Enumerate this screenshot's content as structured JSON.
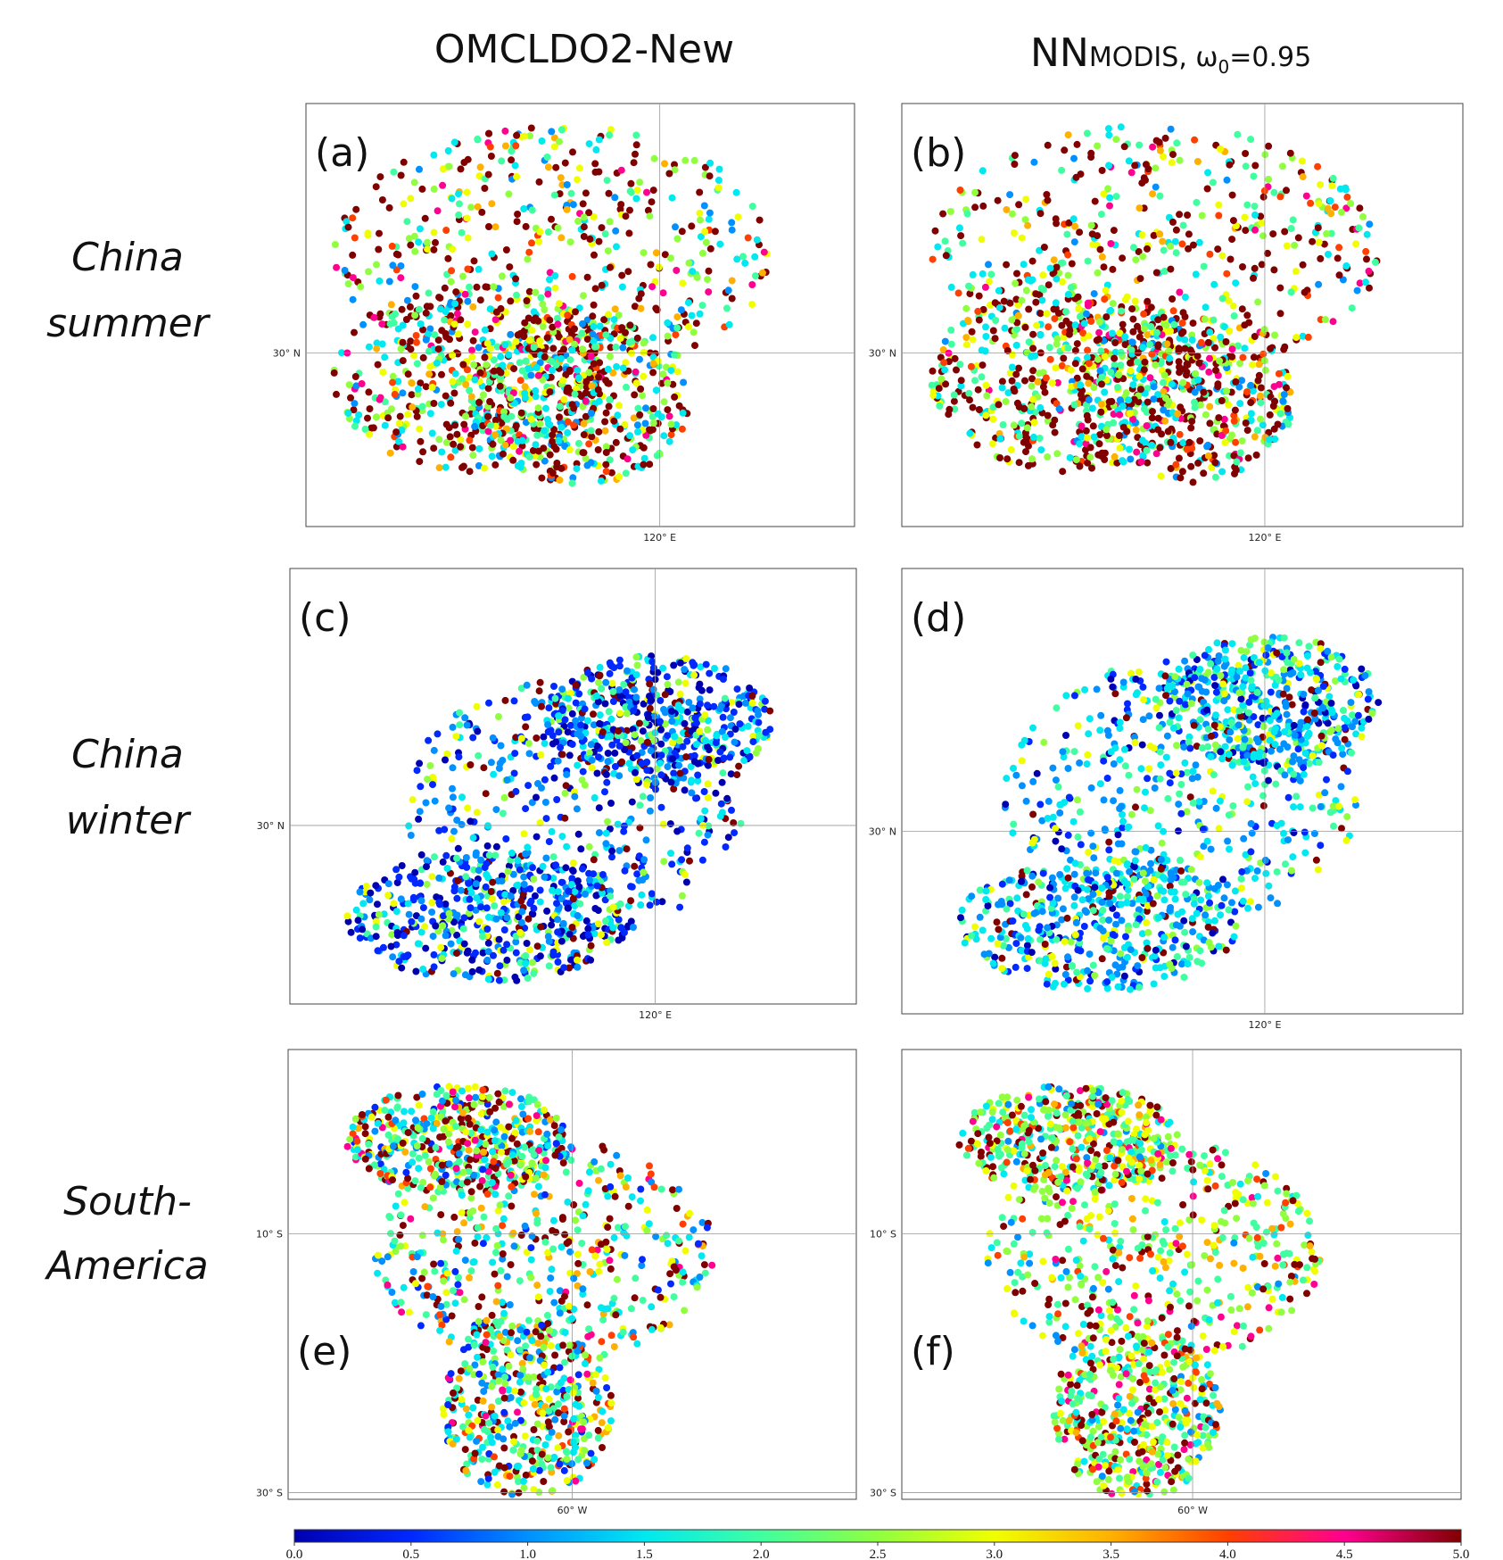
{
  "columns": [
    {
      "main": "OMCLDO2-New"
    },
    {
      "main": "NN",
      "sub": "MODIS, ω",
      "subscript": "0",
      "rest": "=0.95"
    }
  ],
  "rows": [
    [
      "China",
      "summer"
    ],
    [
      "China",
      "winter"
    ],
    [
      "South-",
      "America"
    ]
  ],
  "panels": [
    {
      "label": "(a)",
      "lat_label": "30° N",
      "lon_label": "120° E"
    },
    {
      "label": "(b)",
      "lat_label": "30° N",
      "lon_label": "120° E"
    },
    {
      "label": "(c)",
      "lat_label": "30° N",
      "lon_label": "120° E"
    },
    {
      "label": "(d)",
      "lat_label": "30° N",
      "lon_label": "120° E"
    },
    {
      "label": "(e)",
      "lat_label": "10° S",
      "lat_label2": "30° S",
      "lon_label": "60°  W"
    },
    {
      "label": "(f)",
      "lat_label": "10° S",
      "lat_label2": "30° S",
      "lon_label": "60°  W"
    }
  ],
  "colorbar": {
    "range": [
      0,
      5
    ],
    "ticks": [
      {
        "value": 0,
        "label": "0.0"
      },
      {
        "value": 0.5,
        "label": "0.5"
      },
      {
        "value": 1,
        "label": "1.0"
      },
      {
        "value": 1.5,
        "label": "1.5"
      },
      {
        "value": 2,
        "label": "2.0"
      },
      {
        "value": 2.5,
        "label": "2.5"
      },
      {
        "value": 3,
        "label": "3.0"
      },
      {
        "value": 3.5,
        "label": "3.5"
      },
      {
        "value": 4,
        "label": "4.0"
      },
      {
        "value": 4.5,
        "label": "4.5"
      },
      {
        "value": 5,
        "label": "5.0"
      }
    ],
    "colors": [
      "#0000b0",
      "#0028ff",
      "#0090ff",
      "#00e8f0",
      "#40ffa0",
      "#90ff40",
      "#f0ff00",
      "#ffb000",
      "#ff4000",
      "#ff0090",
      "#800000"
    ]
  }
}
